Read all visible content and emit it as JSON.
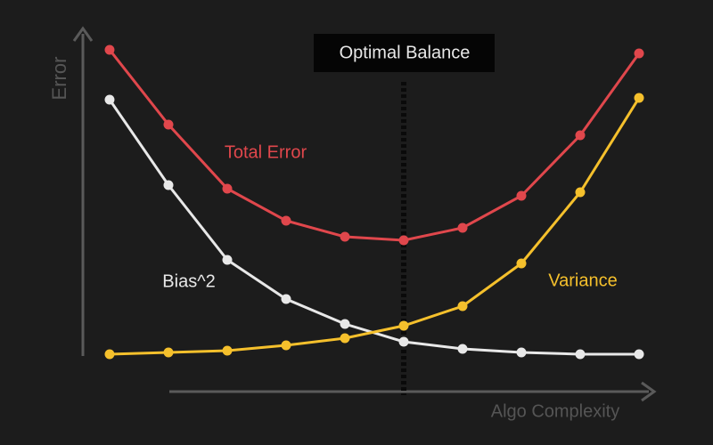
{
  "chart_data": {
    "type": "line",
    "x": [
      1,
      2,
      3,
      4,
      5,
      6,
      7,
      8,
      9,
      10
    ],
    "xlim": [
      0,
      11
    ],
    "ylim": [
      0,
      100
    ],
    "x_label": "Algo Complexity",
    "y_label": "Error",
    "series": [
      {
        "name": "Total Error",
        "color": "#e0474c",
        "values": [
          96,
          75,
          57,
          48,
          43.5,
          42.5,
          46,
          55,
          72,
          95
        ]
      },
      {
        "name": "Bias^2",
        "color": "#e8e8e8",
        "values": [
          82,
          58,
          37,
          26,
          19,
          14,
          12,
          11,
          10.5,
          10.5
        ]
      },
      {
        "name": "Variance",
        "color": "#f5c02c",
        "values": [
          10.5,
          11,
          11.5,
          13,
          15,
          18.5,
          24,
          36,
          56,
          82.5
        ]
      }
    ],
    "annotations": [
      {
        "text": "Optimal Balance",
        "x": 6
      }
    ]
  }
}
